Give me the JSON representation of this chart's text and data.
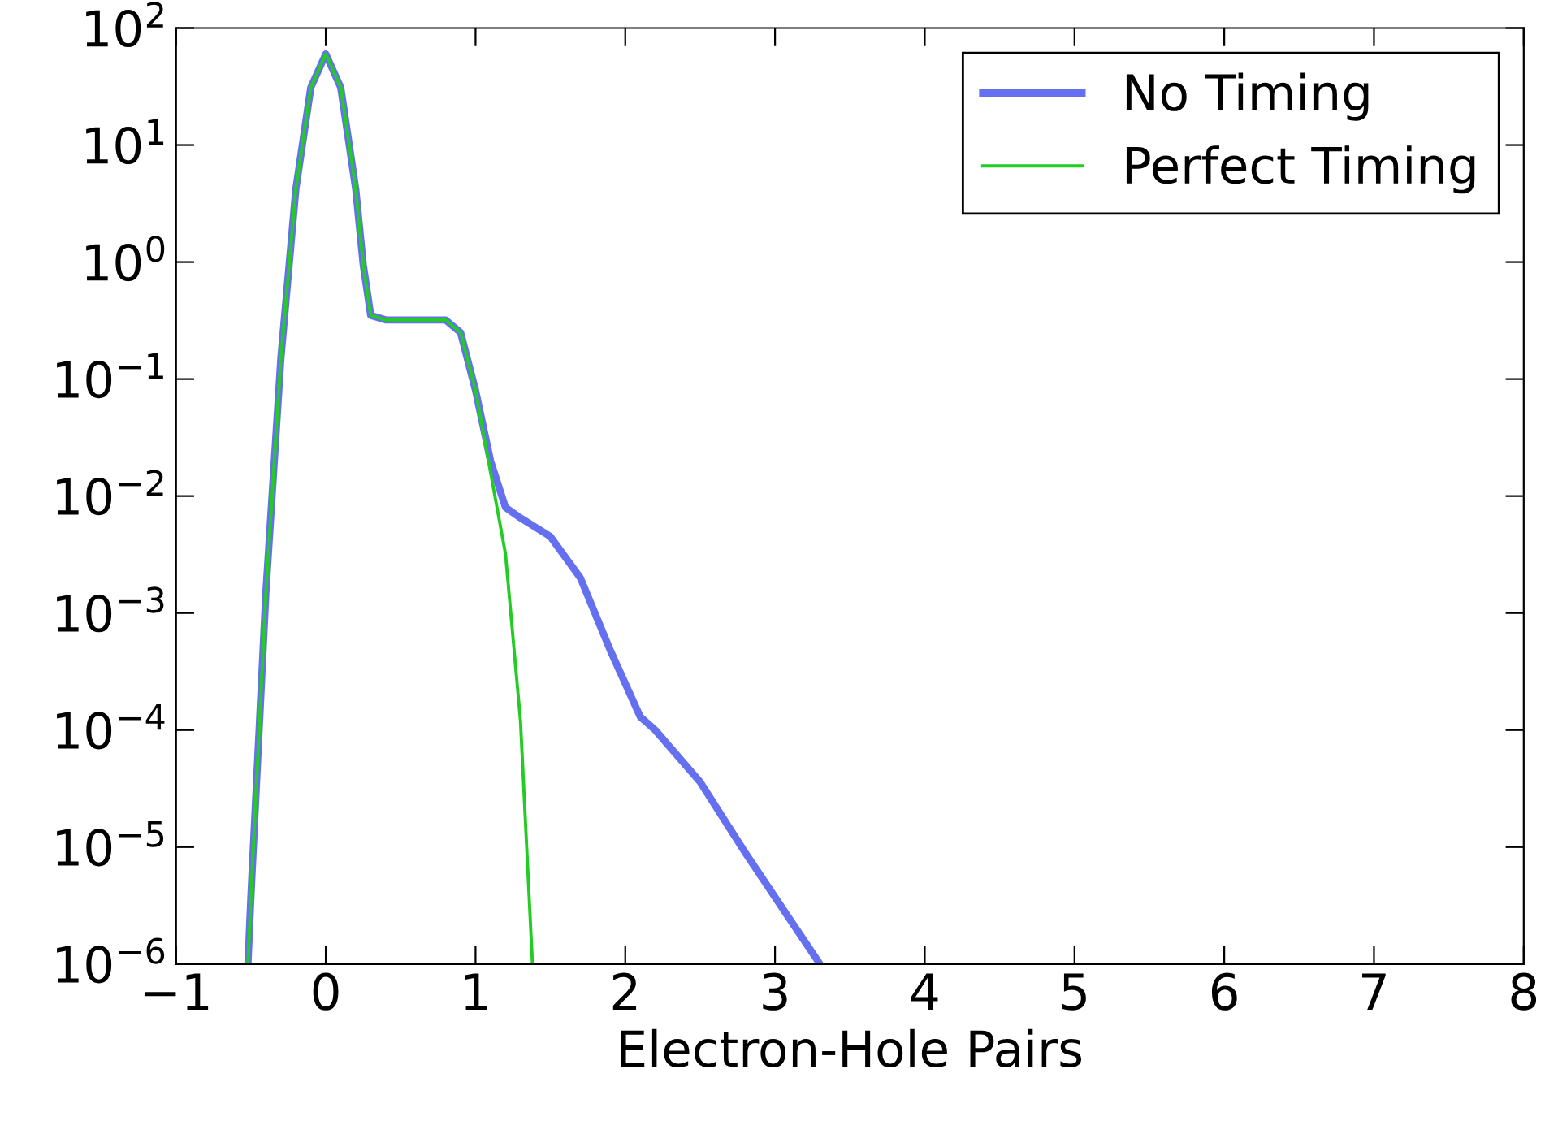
{
  "chart_data": {
    "type": "line",
    "xlabel": "Electron-Hole Pairs",
    "log": "y",
    "legend": "top right",
    "grid": false,
    "xlim": [
      -1,
      8
    ],
    "xticks": [
      {
        "value": -1,
        "label": "−1"
      },
      0,
      1,
      2,
      3,
      4,
      5,
      6,
      7,
      8
    ],
    "ylim": [
      1e-06,
      100
    ],
    "yticks": [
      {
        "value": 1e-06,
        "label": "10$^{−6}$"
      },
      {
        "value": 1e-05,
        "label": "10$^{−5}$"
      },
      {
        "value": 0.0001,
        "label": "10$^{−4}$"
      },
      {
        "value": 0.001,
        "label": "10$^{−3}$"
      },
      {
        "value": 0.01,
        "label": "10$^{−2}$"
      },
      {
        "value": 0.1,
        "label": "10$^{−1}$"
      },
      {
        "value": 1,
        "label": "10$^{0}$"
      },
      {
        "value": 10,
        "label": "10$^{1}$"
      },
      {
        "value": 100,
        "label": "10$^{2}$"
      }
    ],
    "series": [
      {
        "name": "No Timing",
        "color": "#6470f0",
        "x": [
          -0.52,
          -0.5,
          -0.4,
          -0.3,
          -0.2,
          -0.1,
          0,
          0.1,
          0.2,
          0.25,
          0.3,
          0.4,
          0.6,
          0.8,
          0.9,
          1.0,
          1.1,
          1.2,
          1.3,
          1.5,
          1.7,
          1.9,
          2.1,
          2.2,
          2.5,
          2.8,
          3.1,
          3.3
        ],
        "values": [
          1e-06,
          3.8e-06,
          0.0015,
          0.15,
          4.2,
          31,
          60,
          31,
          4.2,
          0.95,
          0.35,
          0.32,
          0.32,
          0.32,
          0.25,
          0.08,
          0.02,
          0.008,
          0.0065,
          0.0045,
          0.002,
          0.00048,
          0.00013,
          0.0001,
          3.6e-05,
          9e-06,
          2.4e-06,
          1e-06
        ]
      },
      {
        "name": "Perfect Timing",
        "color": "#22cc22",
        "x": [
          -0.52,
          -0.5,
          -0.4,
          -0.3,
          -0.2,
          -0.1,
          0,
          0.1,
          0.2,
          0.25,
          0.3,
          0.4,
          0.6,
          0.8,
          0.9,
          1.0,
          1.1,
          1.2,
          1.3,
          1.38
        ],
        "values": [
          1e-06,
          3.8e-06,
          0.0015,
          0.15,
          4.2,
          31,
          60,
          31,
          4.2,
          0.95,
          0.35,
          0.32,
          0.32,
          0.32,
          0.25,
          0.08,
          0.016,
          0.0032,
          0.00012,
          1e-06
        ]
      }
    ]
  }
}
